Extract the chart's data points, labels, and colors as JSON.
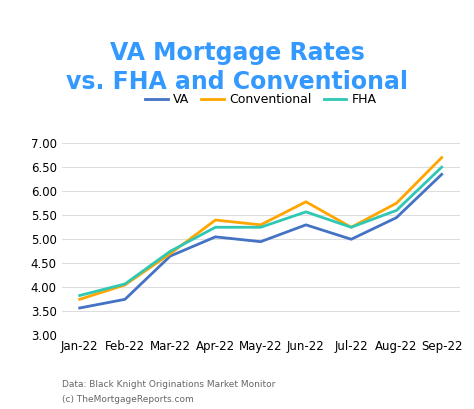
{
  "title": "VA Mortgage Rates\nvs. FHA and Conventional",
  "title_color": "#3399FF",
  "categories": [
    "Jan-22",
    "Feb-22",
    "Mar-22",
    "Apr-22",
    "May-22",
    "Jun-22",
    "Jul-22",
    "Aug-22",
    "Sep-22"
  ],
  "va": [
    3.57,
    3.75,
    4.65,
    5.05,
    4.95,
    5.3,
    5.0,
    5.45,
    6.35
  ],
  "conventional": [
    3.75,
    4.05,
    4.7,
    5.4,
    5.3,
    5.78,
    5.25,
    5.75,
    6.7
  ],
  "fha": [
    3.83,
    4.07,
    4.75,
    5.25,
    5.25,
    5.57,
    5.25,
    5.6,
    6.5
  ],
  "va_color": "#4472C4",
  "conventional_color": "#FFA500",
  "fha_color": "#2EC8B4",
  "ylim": [
    3.0,
    7.0
  ],
  "yticks": [
    3.0,
    3.5,
    4.0,
    4.5,
    5.0,
    5.5,
    6.0,
    6.5,
    7.0
  ],
  "footnote1": "Data: Black Knight Originations Market Monitor",
  "footnote2": "(c) TheMortgageReports.com",
  "background_color": "#ffffff",
  "grid_color": "#dddddd",
  "linewidth": 2.0,
  "title_fontsize": 17,
  "tick_fontsize": 8.5
}
